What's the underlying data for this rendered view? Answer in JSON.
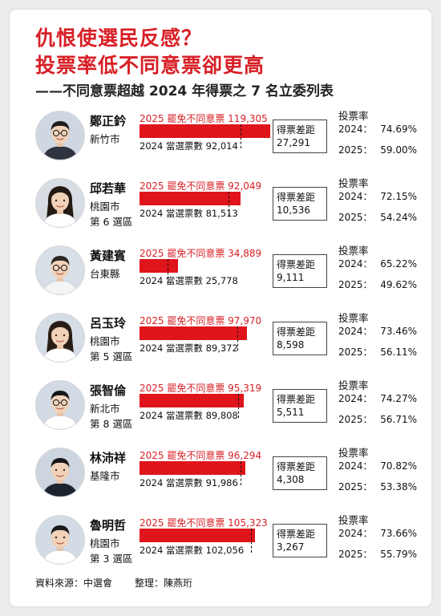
{
  "header": {
    "title_line1": "仇恨使選民反感？",
    "title_line2": "投票率低不同意票卻更高",
    "subtitle": "——不同意票超越 2024 年得票之 7 名立委列表"
  },
  "labels": {
    "recall_prefix": "2025 罷免不同意票",
    "elected_prefix": "2024 當選票數",
    "gap_title": "得票差距",
    "rate_title": "投票率",
    "year_2024": "2024：",
    "year_2025": "2025："
  },
  "chart_data": {
    "type": "bar",
    "title": "",
    "categories": [
      "鄭正鈐",
      "邱若華",
      "黃建賓",
      "呂玉玲",
      "張智倫",
      "林沛祥",
      "魯明哲"
    ],
    "series": [
      {
        "name": "2025 罷免不同意票",
        "values": [
          119305,
          92049,
          34889,
          97970,
          95319,
          96294,
          105323
        ]
      },
      {
        "name": "2024 當選票數",
        "values": [
          92014,
          81513,
          25778,
          89372,
          89808,
          91986,
          102056
        ]
      }
    ],
    "colors": {
      "recall_bar": "#e0141b",
      "elected_marker": "#111111",
      "title": "#d81f26"
    },
    "xlim": [
      0,
      119305
    ],
    "grid": false,
    "legend": "none"
  },
  "legislators": [
    {
      "name": "鄭正鈐",
      "city": "新竹市",
      "district": "",
      "recall_text": "119,305",
      "elected_text": "92,014",
      "gap": "27,291",
      "rate2024": "74.69%",
      "rate2025": "59.00%",
      "avatar": {
        "bg": "#cfd8e2",
        "hair": "#1c1c1c",
        "shirt": "#2f3540",
        "glasses": true,
        "long_hair": false
      }
    },
    {
      "name": "邱若華",
      "city": "桃園市",
      "district": "第 6 選區",
      "recall_text": "92,049",
      "elected_text": "81,513",
      "gap": "10,536",
      "rate2024": "72.15%",
      "rate2025": "54.24%",
      "avatar": {
        "bg": "#d8dde3",
        "hair": "#231a14",
        "shirt": "#ffffff",
        "glasses": false,
        "long_hair": true
      }
    },
    {
      "name": "黃建賓",
      "city": "台東縣",
      "district": "",
      "recall_text": "34,889",
      "elected_text": "25,778",
      "gap": "9,111",
      "rate2024": "65.22%",
      "rate2025": "49.62%",
      "avatar": {
        "bg": "#d9dfe6",
        "hair": "#2a2622",
        "shirt": "#f4f4f4",
        "glasses": true,
        "long_hair": false
      }
    },
    {
      "name": "呂玉玲",
      "city": "桃園市",
      "district": "第 5 選區",
      "recall_text": "97,970",
      "elected_text": "89,372",
      "gap": "8,598",
      "rate2024": "73.46%",
      "rate2025": "56.11%",
      "avatar": {
        "bg": "#d5dde6",
        "hair": "#2a1d16",
        "shirt": "#ffffff",
        "glasses": false,
        "long_hair": true
      }
    },
    {
      "name": "張智倫",
      "city": "新北市",
      "district": "第 8 選區",
      "recall_text": "95,319",
      "elected_text": "89,808",
      "gap": "5,511",
      "rate2024": "74.27%",
      "rate2025": "56.71%",
      "avatar": {
        "bg": "#d2dae3",
        "hair": "#161616",
        "shirt": "#ffffff",
        "glasses": true,
        "long_hair": false
      }
    },
    {
      "name": "林沛祥",
      "city": "基隆市",
      "district": "",
      "recall_text": "96,294",
      "elected_text": "91,986",
      "gap": "4,308",
      "rate2024": "70.82%",
      "rate2025": "53.38%",
      "avatar": {
        "bg": "#cdd5de",
        "hair": "#181818",
        "shirt": "#1d2430",
        "glasses": false,
        "long_hair": false
      }
    },
    {
      "name": "魯明哲",
      "city": "桃園市",
      "district": "第 3 選區",
      "recall_text": "105,323",
      "elected_text": "102,056",
      "gap": "3,267",
      "rate2024": "73.66%",
      "rate2025": "55.79%",
      "avatar": {
        "bg": "#d3dbe4",
        "hair": "#1a1a1a",
        "shirt": "#ffffff",
        "glasses": false,
        "long_hair": false
      }
    }
  ],
  "footer": {
    "source": "資料來源：中選會",
    "editor": "整理：陳燕珩"
  }
}
